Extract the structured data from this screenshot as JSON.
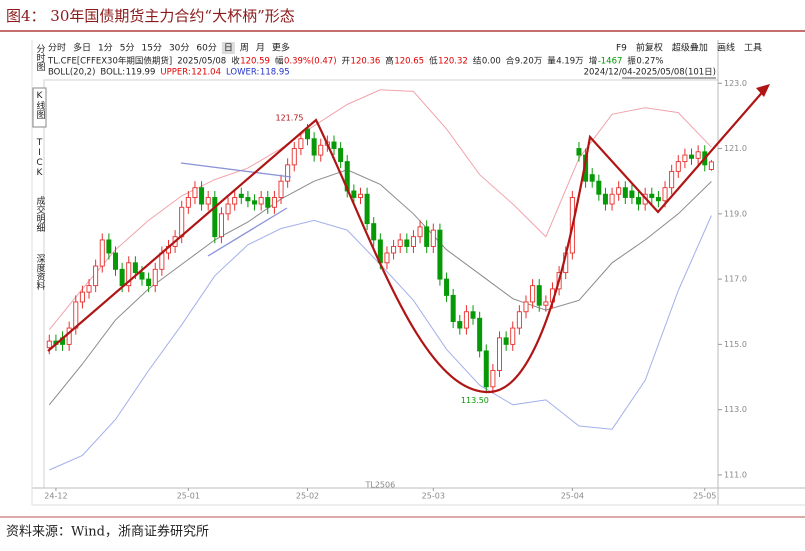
{
  "header": {
    "title": "图4：  30年国债期货主力合约“大杯柄”形态"
  },
  "toolbar": {
    "left": [
      "分时",
      "多日",
      "1分",
      "5分",
      "15分",
      "30分",
      "60分",
      "日",
      "周",
      "月",
      "更多"
    ],
    "active": "日",
    "right": [
      "F9",
      "前复权",
      "超级叠加",
      "画线",
      "工具"
    ]
  },
  "sidebar": [
    "分时图",
    "K线图",
    "TICK",
    "成交明细",
    "深度资料"
  ],
  "info": {
    "symbol": "TL.CFE[CFFEX30年期国债期货]",
    "date": "2025/05/08",
    "quotes": [
      {
        "label": "收",
        "value": "120.59",
        "color": "#e00000"
      },
      {
        "label": "幅",
        "value": "0.39%(0.47)",
        "color": "#e00000"
      },
      {
        "label": "开",
        "value": "120.36",
        "color": "#e00000"
      },
      {
        "label": "高",
        "value": "120.65",
        "color": "#e00000"
      },
      {
        "label": "低",
        "value": "120.32",
        "color": "#e00000"
      },
      {
        "label": "结",
        "value": "0.00",
        "color": "#222222"
      },
      {
        "label": "合",
        "value": "9.20万",
        "color": "#222222"
      },
      {
        "label": "量",
        "value": "4.19万",
        "color": "#222222"
      },
      {
        "label": "增",
        "value": "-1467",
        "color": "#009900"
      },
      {
        "label": "振",
        "value": "0.27%",
        "color": "#222222"
      }
    ],
    "indicator": "BOLL(20,2)",
    "bands": [
      {
        "label": "BOLL:",
        "value": "119.99",
        "color": "#222222"
      },
      {
        "label": "UPPER:",
        "value": "121.04",
        "color": "#e00000"
      },
      {
        "label": "LOWER:",
        "value": "118.95",
        "color": "#2233cc"
      }
    ],
    "range": "2024/12/04-2025/05/08(101日)"
  },
  "chart_data": {
    "type": "candlestick",
    "open": [
      114.9,
      115.1,
      115.2,
      115.0,
      115.5,
      116.3,
      116.6,
      116.8,
      117.4,
      118.2,
      117.8,
      117.3,
      116.8,
      117.5,
      117.2,
      117.0,
      116.8,
      117.3,
      117.8,
      118.0,
      118.3,
      119.2,
      119.5,
      119.8,
      119.3,
      119.5,
      118.3,
      119.0,
      119.3,
      119.6,
      119.5,
      119.4,
      119.3,
      119.5,
      119.2,
      119.5,
      120.0,
      120.5,
      121.0,
      121.6,
      121.3,
      120.8,
      121.1,
      121.2,
      121.0,
      120.6,
      119.7,
      119.5,
      119.6,
      118.7,
      118.2,
      117.5,
      117.8,
      118.0,
      118.2,
      118.0,
      118.3,
      118.6,
      118.0,
      118.5,
      117.0,
      116.5,
      115.7,
      115.5,
      116.0,
      115.8,
      114.8,
      113.7,
      114.2,
      115.2,
      115.0,
      115.5,
      116.0,
      116.3,
      116.8,
      116.2,
      116.3,
      116.7,
      117.2,
      117.8,
      121.0,
      120.8,
      120.2,
      120.0,
      119.6,
      119.3,
      119.6,
      119.8,
      119.7,
      119.5,
      119.3,
      119.6,
      119.5,
      119.4,
      119.8,
      120.3,
      120.6,
      120.8,
      120.7,
      120.9,
      120.36
    ],
    "high": [
      115.3,
      115.3,
      115.4,
      115.7,
      116.5,
      116.8,
      117.0,
      117.6,
      118.4,
      118.4,
      118.0,
      117.5,
      117.7,
      117.7,
      117.4,
      117.2,
      117.5,
      118.0,
      118.2,
      118.5,
      119.4,
      119.7,
      120.0,
      120.0,
      119.7,
      119.7,
      119.2,
      119.5,
      119.7,
      119.8,
      119.7,
      119.6,
      119.7,
      119.7,
      119.7,
      120.2,
      120.7,
      121.2,
      121.5,
      121.75,
      121.5,
      121.3,
      121.4,
      121.4,
      121.2,
      120.8,
      119.9,
      119.8,
      119.8,
      118.9,
      118.4,
      118.0,
      118.2,
      118.4,
      118.4,
      118.5,
      118.8,
      118.8,
      118.7,
      118.7,
      117.2,
      116.7,
      115.9,
      116.2,
      116.2,
      116.0,
      115.0,
      114.4,
      115.4,
      115.4,
      115.7,
      116.2,
      116.5,
      117.0,
      117.0,
      116.5,
      116.9,
      117.4,
      118.0,
      119.7,
      121.2,
      121.0,
      120.4,
      120.2,
      119.8,
      119.8,
      120.0,
      120.0,
      119.9,
      119.7,
      119.8,
      119.8,
      119.7,
      120.0,
      120.5,
      120.8,
      121.0,
      121.0,
      121.1,
      121.1,
      120.65
    ],
    "low": [
      114.7,
      114.8,
      114.8,
      114.8,
      115.3,
      116.1,
      116.4,
      116.6,
      117.2,
      117.6,
      117.1,
      116.6,
      116.6,
      117.0,
      116.8,
      116.6,
      116.6,
      117.1,
      117.6,
      117.8,
      118.1,
      119.0,
      119.3,
      119.1,
      119.1,
      118.1,
      118.1,
      118.8,
      119.1,
      119.3,
      119.2,
      119.1,
      119.1,
      119.0,
      119.0,
      119.3,
      119.8,
      120.3,
      120.8,
      121.1,
      120.6,
      120.6,
      120.9,
      120.8,
      120.4,
      119.5,
      119.3,
      119.3,
      118.5,
      118.0,
      117.3,
      117.3,
      117.6,
      117.8,
      117.8,
      117.8,
      118.1,
      117.8,
      117.8,
      116.8,
      116.3,
      115.5,
      115.3,
      115.3,
      115.6,
      114.6,
      113.5,
      113.5,
      114.0,
      114.8,
      114.8,
      115.3,
      115.8,
      116.1,
      116.0,
      116.0,
      116.1,
      116.5,
      117.0,
      117.6,
      120.6,
      119.8,
      119.8,
      119.4,
      119.1,
      119.1,
      119.4,
      119.3,
      119.3,
      119.1,
      119.1,
      119.3,
      119.2,
      119.2,
      119.6,
      120.1,
      120.4,
      120.5,
      120.5,
      120.3,
      120.32
    ],
    "close": [
      115.1,
      115.0,
      115.0,
      115.5,
      116.3,
      116.6,
      116.8,
      117.4,
      118.2,
      117.8,
      117.3,
      116.8,
      117.5,
      117.2,
      117.0,
      116.8,
      117.3,
      117.8,
      118.0,
      118.3,
      119.2,
      119.5,
      119.8,
      119.3,
      119.5,
      118.3,
      119.0,
      119.3,
      119.5,
      119.5,
      119.4,
      119.3,
      119.5,
      119.2,
      119.5,
      120.0,
      120.5,
      121.0,
      121.3,
      121.3,
      120.8,
      121.1,
      121.2,
      121.0,
      120.6,
      119.7,
      119.5,
      119.6,
      118.7,
      118.2,
      117.5,
      117.8,
      118.0,
      118.2,
      118.0,
      118.3,
      118.6,
      118.0,
      118.5,
      117.0,
      116.5,
      115.7,
      115.5,
      116.0,
      115.8,
      114.8,
      113.7,
      114.2,
      115.2,
      115.0,
      115.5,
      116.0,
      116.3,
      116.8,
      116.2,
      116.3,
      116.7,
      117.2,
      117.8,
      119.5,
      120.8,
      120.0,
      120.0,
      119.6,
      119.3,
      119.6,
      119.8,
      119.5,
      119.5,
      119.3,
      119.6,
      119.5,
      119.4,
      119.8,
      120.3,
      120.6,
      120.8,
      120.7,
      120.9,
      120.5,
      120.59
    ],
    "up_color": "#e8302e",
    "down_color": "#079907",
    "series": [
      {
        "name": "UPPER",
        "color": "#f0a3ab",
        "x": [
          0,
          5,
          10,
          15,
          20,
          25,
          30,
          35,
          40,
          45,
          50,
          55,
          60,
          65,
          70,
          75,
          80,
          85,
          90,
          95,
          100
        ],
        "values": [
          115.45,
          116.7,
          117.9,
          118.8,
          119.55,
          120.05,
          120.4,
          121.0,
          121.7,
          122.35,
          122.8,
          122.75,
          121.6,
          120.2,
          119.3,
          118.3,
          120.7,
          122.05,
          122.25,
          122.1,
          121.04
        ]
      },
      {
        "name": "BOLL",
        "color": "#8a8a8a",
        "x": [
          0,
          5,
          10,
          15,
          20,
          25,
          30,
          35,
          40,
          45,
          50,
          55,
          60,
          65,
          70,
          75,
          80,
          85,
          90,
          95,
          100
        ],
        "values": [
          113.15,
          114.4,
          115.75,
          116.7,
          117.45,
          118.2,
          118.75,
          119.45,
          120.0,
          120.35,
          119.9,
          119.0,
          117.9,
          117.15,
          116.4,
          116.05,
          116.35,
          117.5,
          118.2,
          119.0,
          119.99
        ]
      },
      {
        "name": "LOWER",
        "color": "#a3b0ea",
        "x": [
          0,
          5,
          10,
          15,
          20,
          25,
          30,
          35,
          40,
          45,
          50,
          55,
          60,
          65,
          70,
          75,
          80,
          85,
          90,
          95,
          100
        ],
        "values": [
          111.15,
          111.6,
          112.7,
          114.2,
          115.6,
          117.1,
          118.05,
          118.55,
          118.8,
          118.5,
          117.45,
          116.35,
          114.85,
          113.75,
          113.15,
          113.3,
          112.5,
          112.4,
          113.9,
          116.65,
          118.95
        ]
      }
    ],
    "xlim": [
      -0.8,
      101
    ],
    "xticks": [
      {
        "value": 1,
        "label": "24-12"
      },
      {
        "value": 21,
        "label": "25-01"
      },
      {
        "value": 39,
        "label": "25-02"
      },
      {
        "value": 58,
        "label": "25-03"
      },
      {
        "value": 79,
        "label": "25-04"
      },
      {
        "value": 99,
        "label": "25-05"
      }
    ],
    "ylim": [
      110.6,
      123.1
    ],
    "yticks": [
      {
        "value": 111,
        "label": "111.0"
      },
      {
        "value": 113,
        "label": "113.0"
      },
      {
        "value": 115,
        "label": "115.0"
      },
      {
        "value": 117,
        "label": "117.0"
      },
      {
        "value": 119,
        "label": "119.0"
      },
      {
        "value": 121,
        "label": "121.0"
      },
      {
        "value": 123,
        "label": "123.0"
      }
    ],
    "annotations": [
      {
        "x": 39,
        "y": 121.75,
        "text": "121.75",
        "color": "#b01010"
      },
      {
        "x": 67,
        "y": 113.5,
        "text": "113.50",
        "color": "#079907"
      }
    ],
    "contract_marker": {
      "x": 50,
      "text": "TL2506"
    }
  },
  "source": "资料来源：Wind，浙商证券研究所"
}
